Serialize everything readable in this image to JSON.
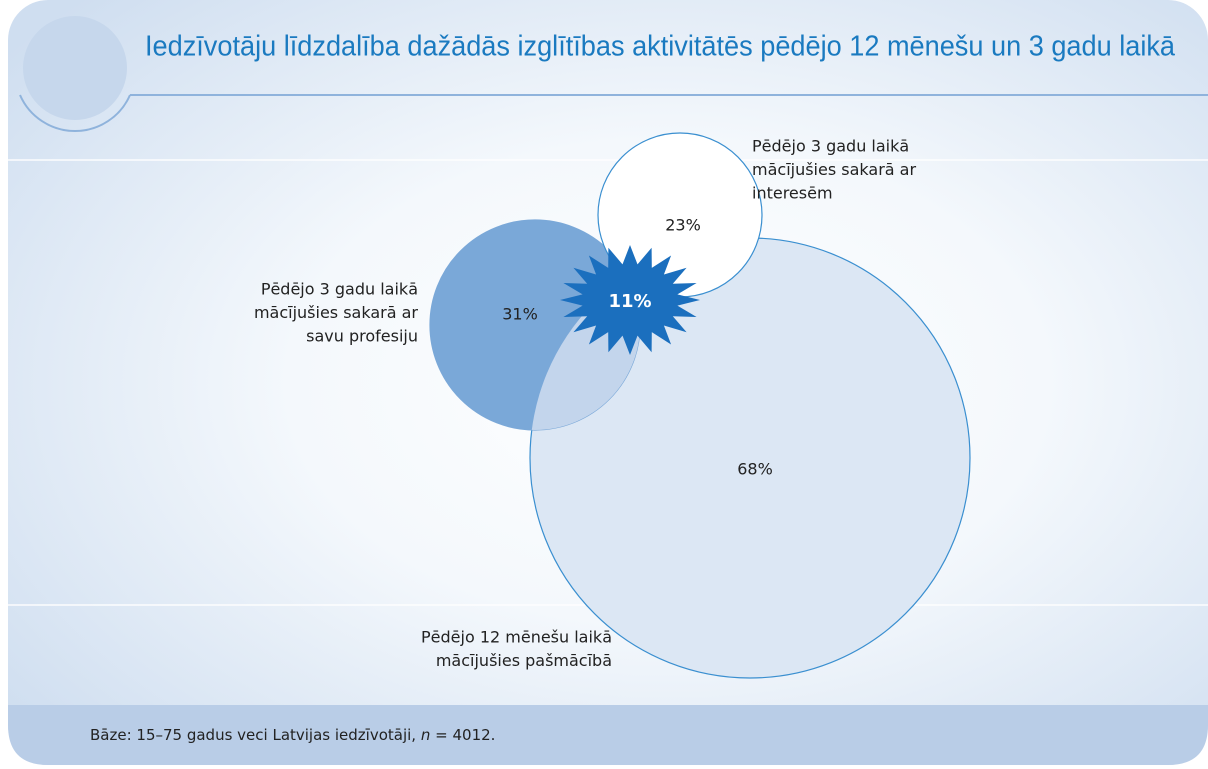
{
  "chart_data": {
    "type": "venn",
    "title": "Iedzīvotāju līdzdalība dažādās izglītības aktivitātēs pēdējo 12 mēnešu un 3 gadu laikā",
    "sets": [
      {
        "name": [
          "Pēdējo 3 gadu laikā",
          "mācījušies sakarā ar",
          "savu profesiju"
        ],
        "value": 31,
        "value_label": "31%",
        "color": "#7aa8d8"
      },
      {
        "name": [
          "Pēdējo 3 gadu laikā",
          "mācījušies sakarā ar",
          "interesēm"
        ],
        "value": 23,
        "value_label": "23%",
        "color": "#ffffff"
      },
      {
        "name": [
          "Pēdējo 12 mēnešu laikā",
          "mācījušies pašmācībā"
        ],
        "value": 68,
        "value_label": "68%",
        "color": "#dce7f4"
      }
    ],
    "intersection": {
      "value": 11,
      "value_label": "11%",
      "color": "#1b6fbe"
    },
    "note": {
      "text": "Bāze: 15–75 gadus veci Latvijas iedzīvotāji,",
      "symbol": "n",
      "rest": "= 4012."
    }
  }
}
